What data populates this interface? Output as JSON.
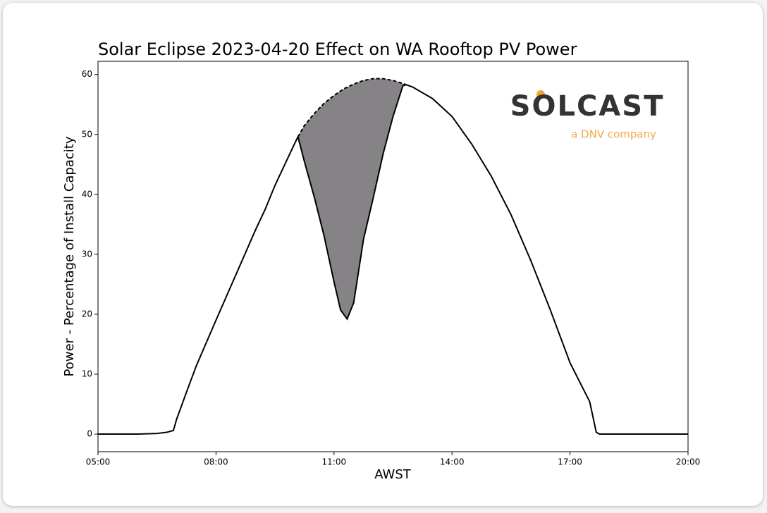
{
  "chart_data": {
    "type": "line",
    "title": "Solar Eclipse 2023-04-20 Effect on WA Rooftop PV Power",
    "x_label": "AWST",
    "y_label": "Power - Percentage of Install Capacity",
    "logo": {
      "name": "SOLCAST",
      "tagline": "a DNV company"
    },
    "xlim": [
      "05:00",
      "20:00"
    ],
    "xticks": [
      "05:00",
      "08:00",
      "11:00",
      "14:00",
      "17:00",
      "20:00"
    ],
    "ylim": [
      -2.94,
      62.2
    ],
    "yticks": [
      0,
      10,
      20,
      30,
      40,
      50,
      60
    ],
    "grid": false,
    "series": [
      {
        "color": "#000000",
        "style": "solid",
        "x": [
          "05:00",
          "06:00",
          "06:30",
          "06:45",
          "06:55",
          "07:00",
          "07:15",
          "07:30",
          "08:00",
          "08:30",
          "09:00",
          "09:15",
          "09:30",
          "09:45",
          "10:00",
          "10:05",
          "10:15",
          "10:30",
          "10:45",
          "11:00",
          "11:10",
          "11:20",
          "11:30",
          "11:45",
          "12:00",
          "12:15",
          "12:30",
          "12:45",
          "12:50",
          "13:00",
          "13:30",
          "14:00",
          "14:30",
          "15:00",
          "15:30",
          "16:00",
          "16:30",
          "17:00",
          "17:30",
          "17:40",
          "17:45",
          "18:00",
          "20:00"
        ],
        "values": [
          0,
          0,
          0.1,
          0.3,
          0.6,
          2.5,
          7,
          11.4,
          19,
          26.5,
          34,
          37.5,
          41.5,
          45,
          48.5,
          49.6,
          45.4,
          39.5,
          33,
          25.4,
          20.7,
          19.2,
          21.9,
          32.5,
          39.5,
          46.8,
          53,
          58.1,
          58.3,
          57.9,
          56,
          53,
          48.4,
          43,
          36.6,
          29,
          20.7,
          11.9,
          5.4,
          0.3,
          0,
          0,
          0
        ]
      },
      {
        "color": "#000000",
        "style": "dashed",
        "fill": "#858385",
        "x": [
          "10:05",
          "10:15",
          "10:30",
          "10:45",
          "11:00",
          "11:15",
          "11:30",
          "11:45",
          "12:00",
          "12:15",
          "12:30",
          "12:45",
          "12:50"
        ],
        "values": [
          49.6,
          51.5,
          53.5,
          55.2,
          56.5,
          57.6,
          58.4,
          59,
          59.3,
          59.3,
          59,
          58.5,
          58.3
        ]
      }
    ]
  }
}
